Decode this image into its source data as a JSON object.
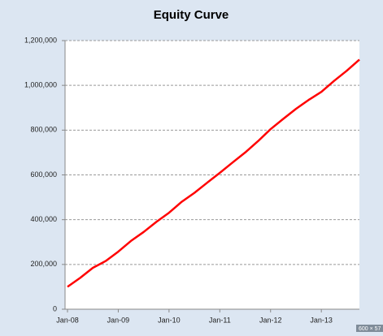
{
  "chart_data": {
    "type": "line",
    "title": "Equity Curve",
    "x": [
      "Jan-08",
      "Apr-08",
      "Jul-08",
      "Oct-08",
      "Jan-09",
      "Apr-09",
      "Jul-09",
      "Oct-09",
      "Jan-10",
      "Apr-10",
      "Jul-10",
      "Oct-10",
      "Jan-11",
      "Apr-11",
      "Jul-11",
      "Oct-11",
      "Jan-12",
      "Apr-12",
      "Jul-12",
      "Oct-12",
      "Jan-13",
      "Apr-13",
      "Jul-13",
      "Oct-13"
    ],
    "values": [
      100000,
      140000,
      185000,
      215000,
      257000,
      305000,
      345000,
      390000,
      431000,
      480000,
      520000,
      565000,
      609000,
      655000,
      700000,
      750000,
      804000,
      850000,
      895000,
      935000,
      971000,
      1020000,
      1065000,
      1115000
    ],
    "color": "#ff0000",
    "xlim": [
      "Jan-08",
      "Oct-13"
    ],
    "xticks": [
      "Jan-08",
      "Jan-09",
      "Jan-10",
      "Jan-11",
      "Jan-12",
      "Jan-13"
    ],
    "ylim": [
      0,
      1200000
    ],
    "yticks": [
      0,
      {
        "value": 200000,
        "label": "200,000"
      },
      {
        "value": 400000,
        "label": "400,000"
      },
      {
        "value": 600000,
        "label": "600,000"
      },
      {
        "value": 800000,
        "label": "800,000"
      },
      {
        "value": 1000000,
        "label": "1,000,000"
      },
      {
        "value": 1200000,
        "label": "1,200,000"
      }
    ],
    "grid": true,
    "annotation": "600 × 57"
  }
}
